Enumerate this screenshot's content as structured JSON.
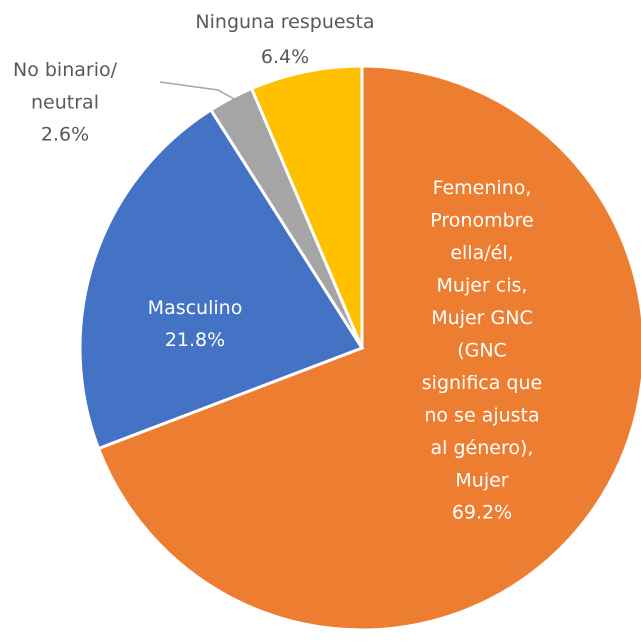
{
  "chart_data": {
    "type": "pie",
    "categories": [
      "Femenino,\nPronombre\nella/él,\nMujer cis,\nMujer GNC\n(GNC\nsignifica que\nno se ajusta\nal género),\nMujer",
      "Masculino",
      "No binario/\nneutral",
      "Ninguna respuesta"
    ],
    "values": [
      69.2,
      21.8,
      2.6,
      6.4
    ],
    "value_labels": [
      "69.2%",
      "21.8%",
      "2.6%",
      "6.4%"
    ],
    "colors": [
      "#ed7d31",
      "#4472c4",
      "#a5a5a5",
      "#ffc000"
    ]
  }
}
